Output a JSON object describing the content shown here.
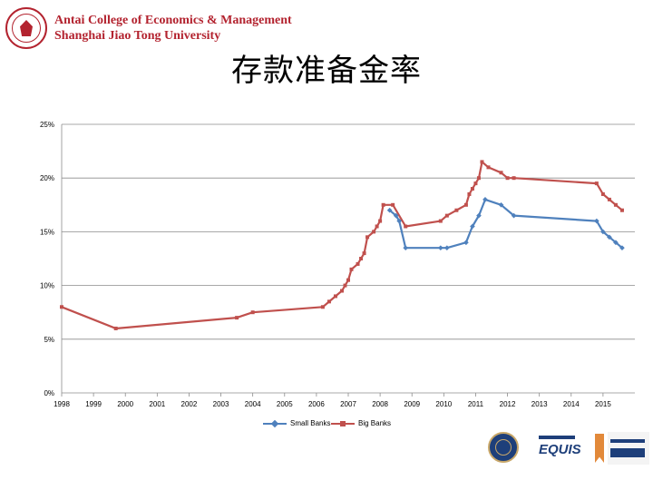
{
  "header": {
    "school_line1": "Antai College of Economics & Management",
    "school_line2": "Shanghai Jiao Tong University"
  },
  "title": "存款准备金率",
  "colors": {
    "small_banks": "#4f81bd",
    "big_banks": "#c0504d",
    "school_red": "#b3232f"
  },
  "icons": [
    "sjtu-seal-icon",
    "aacsb-badge-icon",
    "equis-badge-icon",
    "amba-badge-icon"
  ],
  "chart_data": {
    "type": "line",
    "title": "存款准备金率",
    "xlabel": "",
    "ylabel": "",
    "xlim": [
      1998,
      2016
    ],
    "ylim": [
      0,
      25
    ],
    "x_ticks": [
      1998,
      1999,
      2000,
      2001,
      2002,
      2003,
      2004,
      2005,
      2006,
      2007,
      2008,
      2009,
      2010,
      2011,
      2012,
      2013,
      2014,
      2015
    ],
    "y_ticks": [
      0,
      5,
      10,
      15,
      20,
      25
    ],
    "y_tick_labels": [
      "0%",
      "5%",
      "10%",
      "15%",
      "20%",
      "25%"
    ],
    "legend": {
      "position": "bottom"
    },
    "series": [
      {
        "name": "Big Banks",
        "x": [
          1998.0,
          1999.7,
          2003.5,
          2004.0,
          2006.2,
          2006.4,
          2006.6,
          2006.8,
          2006.9,
          2007.0,
          2007.1,
          2007.3,
          2007.4,
          2007.5,
          2007.6,
          2007.8,
          2007.9,
          2008.0,
          2008.1,
          2008.4,
          2008.8,
          2009.9,
          2010.1,
          2010.4,
          2010.7,
          2010.8,
          2010.9,
          2011.0,
          2011.1,
          2011.2,
          2011.4,
          2011.8,
          2012.0,
          2012.2,
          2014.8,
          2015.0,
          2015.2,
          2015.4,
          2015.6
        ],
        "y": [
          8.0,
          6.0,
          7.0,
          7.5,
          8.0,
          8.5,
          9.0,
          9.5,
          10.0,
          10.5,
          11.5,
          12.0,
          12.5,
          13.0,
          14.5,
          15.0,
          15.5,
          16.0,
          17.5,
          17.5,
          15.5,
          16.0,
          16.5,
          17.0,
          17.5,
          18.5,
          19.0,
          19.5,
          20.0,
          21.5,
          21.0,
          20.5,
          20.0,
          20.0,
          19.5,
          18.5,
          18.0,
          17.5,
          17.0
        ]
      },
      {
        "name": "Small Banks",
        "x": [
          2008.3,
          2008.5,
          2008.6,
          2008.8,
          2009.9,
          2010.1,
          2010.7,
          2010.9,
          2011.1,
          2011.3,
          2011.8,
          2012.2,
          2014.8,
          2015.0,
          2015.2,
          2015.4,
          2015.6
        ],
        "y": [
          17.0,
          16.5,
          16.0,
          13.5,
          13.5,
          13.5,
          14.0,
          15.5,
          16.5,
          18.0,
          17.5,
          16.5,
          16.0,
          15.0,
          14.5,
          14.0,
          13.5
        ]
      }
    ]
  }
}
